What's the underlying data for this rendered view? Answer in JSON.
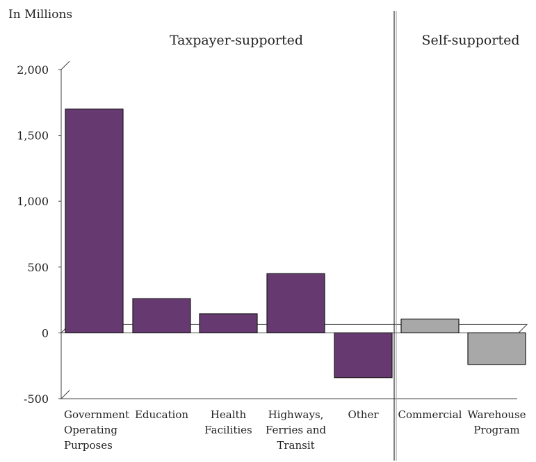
{
  "chart_data": {
    "type": "bar",
    "unit_label": "In Millions",
    "groups": [
      {
        "label": "Taxpayer-supported",
        "categories": [
          "Government Operating Purposes",
          "Education",
          "Health Facilities",
          "Highways, Ferries and Transit",
          "Other"
        ]
      },
      {
        "label": "Self-supported",
        "categories": [
          "Commercial",
          "Warehouse Program"
        ]
      }
    ],
    "categories": [
      {
        "lines": [
          "Government",
          "Operating",
          "Purposes"
        ],
        "value": 1700,
        "group": "Taxpayer-supported"
      },
      {
        "lines": [
          "Education"
        ],
        "value": 260,
        "group": "Taxpayer-supported"
      },
      {
        "lines": [
          "Health",
          "Facilities"
        ],
        "value": 145,
        "group": "Taxpayer-supported"
      },
      {
        "lines": [
          "Highways,",
          "Ferries and",
          "Transit"
        ],
        "value": 450,
        "group": "Taxpayer-supported"
      },
      {
        "lines": [
          "Other"
        ],
        "value": -340,
        "group": "Taxpayer-supported"
      },
      {
        "lines": [
          "Commercial"
        ],
        "value": 105,
        "group": "Self-supported"
      },
      {
        "lines": [
          "Warehouse",
          "Program"
        ],
        "value": -240,
        "group": "Self-supported"
      }
    ],
    "yticks": [
      "2,000",
      "1,500",
      "1,000",
      "500",
      "0",
      "-500"
    ],
    "ylim": [
      -500,
      2000
    ],
    "colors": {
      "Taxpayer-supported": "#663a70",
      "Self-supported": "#a8a8a8"
    },
    "grid": false
  }
}
